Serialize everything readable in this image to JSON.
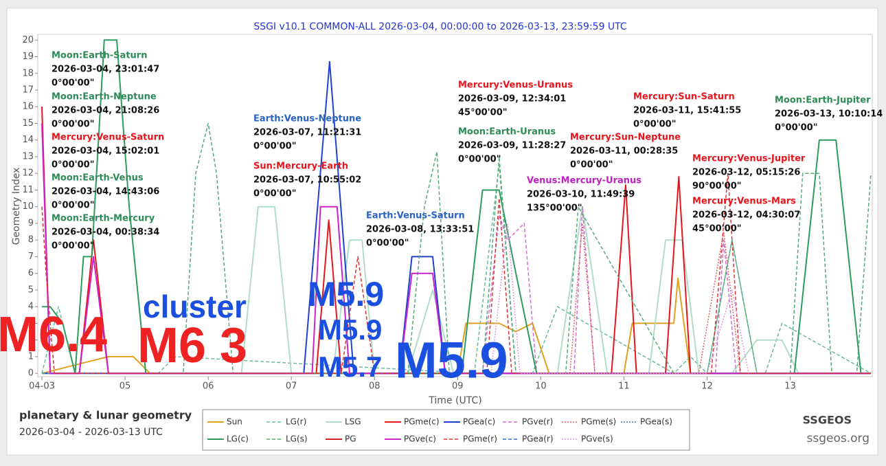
{
  "chart_data": {
    "type": "line",
    "title": "SSGI v10.1 COMMON-ALL 2026-03-04, 00:00:00 to 2026-03-13, 23:59:59 UTC",
    "x_label": "Time (UTC)",
    "y_label": "Geometry Index",
    "xlim": [
      4,
      13.97
    ],
    "ylim": [
      -0.2,
      20.3
    ],
    "grid": false,
    "xticks": [
      {
        "value": 4,
        "label": "04-03"
      },
      {
        "value": 5,
        "label": "05"
      },
      {
        "value": 6,
        "label": "06"
      },
      {
        "value": 7,
        "label": "07"
      },
      {
        "value": 8,
        "label": "08"
      },
      {
        "value": 9,
        "label": "09"
      },
      10,
      11,
      12,
      13
    ],
    "yticks": [
      0,
      1,
      2,
      3,
      4,
      5,
      6,
      7,
      8,
      9,
      10,
      11,
      12,
      13,
      14,
      15,
      16,
      17,
      18,
      19,
      20
    ],
    "series": [
      {
        "name": "Sun",
        "color": "#e0a020",
        "style": "solid",
        "x": [
          4.0,
          4.8,
          5.1,
          5.3,
          9.0,
          9.1,
          9.5,
          9.7,
          9.9,
          10.1,
          11.0,
          11.1,
          11.6,
          11.65,
          11.8,
          13.97
        ],
        "values": [
          0,
          1,
          1,
          0,
          0,
          3,
          3,
          2.5,
          3,
          0,
          0,
          3,
          3,
          5.7,
          0,
          0
        ]
      },
      {
        "name": "LG(r)",
        "color": "#66bb99",
        "style": "dashed",
        "x": [
          4.0,
          4.2,
          4.4,
          5.4,
          5.6,
          9.2,
          9.5,
          9.7,
          9.9,
          10.2,
          10.9,
          11.6,
          11.8,
          12.0,
          12.3,
          12.6,
          12.7,
          12.9,
          13.97
        ],
        "values": [
          0,
          4,
          0,
          0,
          1,
          0,
          12.5,
          0,
          0,
          4,
          2,
          0,
          1,
          0,
          8,
          0,
          0,
          3,
          0
        ]
      },
      {
        "name": "LSG",
        "color": "#b0dcc8",
        "style": "solid",
        "x": [
          4.0,
          4.6,
          4.9,
          6.4,
          6.6,
          6.8,
          7.0,
          7.5,
          7.7,
          7.85,
          8.0,
          8.4,
          8.7,
          8.95,
          10.2,
          10.5,
          10.8,
          11.3,
          11.5,
          11.7,
          11.9,
          12.3,
          12.6,
          12.9,
          13.1,
          13.97
        ],
        "values": [
          0,
          0,
          0,
          0,
          10,
          10,
          0,
          0,
          8,
          8,
          0,
          0,
          5,
          0,
          0,
          10,
          0,
          0,
          8,
          8,
          0,
          0,
          2,
          2,
          0,
          0
        ]
      },
      {
        "name": "PGme(c)",
        "color": "#e8141c",
        "style": "solid",
        "x": [
          4.0,
          4.1,
          4.45,
          4.62,
          4.8,
          7.3,
          7.45,
          7.6,
          10.85,
          11.02,
          11.15,
          11.5,
          11.66,
          11.8,
          13.97
        ],
        "values": [
          16,
          0,
          0,
          8,
          0,
          0,
          9.2,
          0,
          0,
          11.3,
          0,
          0,
          11.8,
          0,
          0
        ]
      },
      {
        "name": "PGea(c)",
        "color": "#2040d0",
        "style": "solid",
        "x": [
          4.0,
          7.15,
          7.46,
          7.75,
          8.3,
          8.45,
          8.7,
          8.85,
          13.97
        ],
        "values": [
          0,
          0,
          18.7,
          0,
          0,
          7,
          7,
          0,
          0
        ]
      },
      {
        "name": "PGve(r)",
        "color": "#d070d0",
        "style": "dashed",
        "x": [
          9.3,
          9.5,
          9.6,
          9.8,
          9.95,
          10.4,
          10.5,
          10.65,
          12.1,
          12.2,
          12.35
        ],
        "values": [
          0,
          9.5,
          8,
          9,
          0,
          0,
          10,
          0,
          0,
          8,
          0
        ]
      },
      {
        "name": "PGme(s)",
        "color": "#e06060",
        "style": "dotted",
        "x": [
          10.35,
          10.5,
          10.65,
          11.9,
          12.2,
          12.4
        ],
        "values": [
          0,
          9,
          0,
          0,
          8.5,
          0
        ]
      },
      {
        "name": "PGea(s)",
        "color": "#4477cc",
        "style": "dotted",
        "x": [],
        "values": []
      },
      {
        "name": "LG(c)",
        "color": "#2e9a5e",
        "style": "solid",
        "x": [
          4.0,
          4.1,
          4.25,
          4.4,
          4.5,
          4.6,
          4.75,
          4.9,
          5.05,
          5.25,
          5.5,
          9.05,
          9.3,
          9.5,
          9.7,
          9.95,
          13.05,
          13.35,
          13.55,
          13.85,
          13.97
        ],
        "values": [
          4,
          4,
          3,
          0,
          7,
          7,
          20,
          20,
          10,
          0,
          0,
          0,
          11,
          11,
          6,
          0,
          0,
          14,
          14,
          0,
          0
        ]
      },
      {
        "name": "LG(s)",
        "color": "#55aa77",
        "style": "dashed",
        "x": [
          4.0,
          5.7,
          5.85,
          6.0,
          6.1,
          6.3,
          8.4,
          8.6,
          8.75,
          8.9,
          9.3,
          9.5,
          9.7,
          10.3,
          10.45,
          11.6,
          12.0,
          12.3,
          12.6,
          13.0,
          13.15,
          13.35,
          13.5,
          13.8,
          13.97
        ],
        "values": [
          0,
          0,
          12,
          15,
          12,
          0,
          0,
          10,
          13.3,
          0,
          0,
          13,
          0,
          0,
          10,
          0,
          0,
          8,
          0,
          0,
          12,
          12,
          0,
          0,
          12
        ]
      },
      {
        "name": "PG",
        "color": "#cc2222",
        "style": "solid",
        "x": [],
        "values": []
      },
      {
        "name": "PGve(c)",
        "color": "#cc22cc",
        "style": "solid",
        "x": [
          4.0,
          4.1,
          4.45,
          4.62,
          4.8,
          7.25,
          7.35,
          7.55,
          7.7,
          8.3,
          8.45,
          8.7,
          8.85,
          13.97
        ],
        "values": [
          15,
          0,
          0,
          7,
          0,
          0,
          10,
          10,
          0,
          0,
          6,
          6,
          0,
          0
        ]
      },
      {
        "name": "PGme(r)",
        "color": "#dd3333",
        "style": "dashed",
        "x": [
          4.0,
          4.05,
          4.15,
          7.6,
          7.8,
          8.0,
          9.35,
          9.5,
          9.65,
          12.05,
          12.25,
          12.4,
          13.97
        ],
        "values": [
          10,
          6,
          0,
          0,
          7,
          0,
          0,
          10.5,
          0,
          0,
          12,
          0,
          0
        ]
      },
      {
        "name": "PGea(r)",
        "color": "#3366cc",
        "style": "dashed",
        "x": [],
        "values": []
      },
      {
        "name": "PGve(s)",
        "color": "#dd99dd",
        "style": "dotted",
        "x": [
          9.4,
          9.6,
          9.75,
          12.0,
          12.3,
          12.5
        ],
        "values": [
          0,
          9,
          0,
          0,
          5,
          0
        ]
      }
    ],
    "annotations": [
      {
        "color": "#2e8b57",
        "lines": [
          "Moon:Earth-Saturn",
          "2026-03-04, 23:01:47",
          "0°00'00\""
        ]
      },
      {
        "color": "#2e8b57",
        "lines": [
          "Moon:Earth-Neptune",
          "2026-03-04, 21:08:26",
          "0°00'00\""
        ]
      },
      {
        "color": "#e8141c",
        "lines": [
          "Mercury:Venus-Saturn",
          "2026-03-04, 15:02:01",
          "0°00'00\""
        ]
      },
      {
        "color": "#2e8b57",
        "lines": [
          "Moon:Earth-Venus",
          "2026-03-04, 14:43:06",
          "0°00'00\""
        ]
      },
      {
        "color": "#2e8b57",
        "lines": [
          "Moon:Earth-Mercury",
          "2026-03-04, 00:38:34",
          "0°00'00\""
        ]
      },
      {
        "color": "#2a62c8",
        "lines": [
          "Earth:Venus-Neptune",
          "2026-03-07, 11:21:31",
          "0°00'00\""
        ]
      },
      {
        "color": "#e8141c",
        "lines": [
          "Sun:Mercury-Earth",
          "2026-03-07, 10:55:02",
          "0°00'00\""
        ]
      },
      {
        "color": "#2a62c8",
        "lines": [
          "Earth:Venus-Saturn",
          "2026-03-08, 13:33:51",
          "0°00'00\""
        ]
      },
      {
        "color": "#e8141c",
        "lines": [
          "Mercury:Venus-Uranus",
          "2026-03-09, 12:34:01",
          "45°00'00\""
        ]
      },
      {
        "color": "#2e8b57",
        "lines": [
          "Moon:Earth-Uranus",
          "2026-03-09, 11:28:27",
          "0°00'00\""
        ]
      },
      {
        "color": "#c020c0",
        "lines": [
          "Venus:Mercury-Uranus",
          "2026-03-10, 11:49:39",
          "135°00'00\""
        ]
      },
      {
        "color": "#e8141c",
        "lines": [
          "Mercury:Sun-Neptune",
          "2026-03-11, 00:28:35",
          "0°00'00\""
        ]
      },
      {
        "color": "#e8141c",
        "lines": [
          "Mercury:Sun-Saturn",
          "2026-03-11, 15:41:55",
          "0°00'00\""
        ]
      },
      {
        "color": "#e8141c",
        "lines": [
          "Mercury:Venus-Jupiter",
          "2026-03-12, 05:15:26",
          "90°00'00\""
        ]
      },
      {
        "color": "#e8141c",
        "lines": [
          "Mercury:Venus-Mars",
          "2026-03-12, 04:30:07",
          "45°00'00\""
        ]
      },
      {
        "color": "#2e8b57",
        "lines": [
          "Moon:Earth-Jupiter",
          "2026-03-13, 10:10:14",
          "0°00'00\""
        ]
      }
    ],
    "overlays": [
      {
        "text": "M6.4",
        "color": "#ee2222"
      },
      {
        "text": "cluster",
        "color": "#1a4fe0"
      },
      {
        "text": "M6 3",
        "color": "#ee2222"
      },
      {
        "text": "M5.9",
        "color": "#1a4fe0"
      },
      {
        "text": "M5.9",
        "color": "#1a4fe0"
      },
      {
        "text": "M5.7",
        "color": "#1a4fe0"
      },
      {
        "text": "M5.9",
        "color": "#1a4fe0"
      }
    ],
    "footer": {
      "subtitle": "planetary & lunar geometry",
      "range": "2026-03-04 - 2026-03-13 UTC",
      "brand": "SSGEOS",
      "site": "ssgeos.org"
    }
  }
}
